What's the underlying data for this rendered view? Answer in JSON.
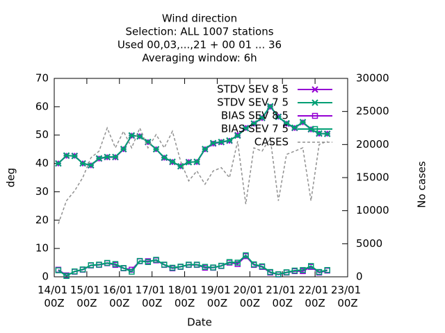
{
  "chart_data": {
    "type": "line",
    "title": [
      "Wind direction",
      "Selection: ALL    1007 stations",
      "Used  00,03,...,21  + 00 01 ... 36",
      "Averaging window:  6h"
    ],
    "xlabel": "Date",
    "ylabel": "deg",
    "y2label": "No cases",
    "xlim": [
      0,
      216
    ],
    "xticks": [
      {
        "value": 0,
        "label": "14/01 00Z"
      },
      {
        "value": 24,
        "label": "15/01 00Z"
      },
      {
        "value": 48,
        "label": "16/01 00Z"
      },
      {
        "value": 72,
        "label": "17/01 00Z"
      },
      {
        "value": 96,
        "label": "18/01 00Z"
      },
      {
        "value": 120,
        "label": "19/01 00Z"
      },
      {
        "value": 144,
        "label": "20/01 00Z"
      },
      {
        "value": 168,
        "label": "21/01 00Z"
      },
      {
        "value": 192,
        "label": "22/01 00Z"
      },
      {
        "value": 216,
        "label": "23/01 00Z"
      }
    ],
    "ylim": [
      0,
      70
    ],
    "yticks": [
      0,
      10,
      20,
      30,
      40,
      50,
      60,
      70
    ],
    "y2lim": [
      0,
      30000
    ],
    "y2ticks": [
      0,
      5000,
      10000,
      15000,
      20000,
      25000,
      30000
    ],
    "legend": "top-right",
    "x": [
      3,
      9,
      15,
      21,
      27,
      33,
      39,
      45,
      51,
      57,
      63,
      69,
      75,
      81,
      87,
      93,
      99,
      105,
      111,
      117,
      123,
      129,
      135,
      141,
      147,
      153,
      159,
      165,
      171,
      177,
      183,
      189,
      195,
      201
    ],
    "series": [
      {
        "name": "STDV SEV 8 5",
        "color": "#9400d3",
        "marker": "star",
        "values": [
          40,
          42.7,
          42.7,
          40,
          39.3,
          41.7,
          42.2,
          42.2,
          45,
          49.8,
          49.6,
          47.5,
          45,
          42,
          40.5,
          39,
          40.5,
          40.5,
          45,
          47,
          47.5,
          48,
          50,
          52.5,
          54,
          56,
          60,
          56.5,
          54,
          52.5,
          54.5,
          52,
          50.5,
          50.5
        ]
      },
      {
        "name": "STDV SEV 7 5",
        "color": "#009e73",
        "marker": "x",
        "values": [
          40,
          42.8,
          42.6,
          40,
          39.4,
          41.8,
          42.3,
          42.3,
          45.1,
          49.9,
          49.5,
          47.6,
          45,
          42.1,
          40.6,
          39,
          40.4,
          40.6,
          45.1,
          47.2,
          47.6,
          48.1,
          49.8,
          52.4,
          54.1,
          56.1,
          60.2,
          56.4,
          54.2,
          52.6,
          54.6,
          52.1,
          50.6,
          50.4
        ]
      },
      {
        "name": "BIAS SEV 8 5",
        "color": "#9400d3",
        "marker": "square",
        "values": [
          2.5,
          0.5,
          1.8,
          2.5,
          4,
          4.2,
          4.8,
          4.2,
          3,
          2.5,
          5.5,
          5.5,
          5.8,
          4.2,
          3,
          3.5,
          4.2,
          4.2,
          3.2,
          3.2,
          3.8,
          5,
          4.5,
          7.3,
          4.2,
          3.5,
          1.5,
          0.8,
          1.5,
          2,
          2,
          3.5,
          1.5,
          2.2
        ]
      },
      {
        "name": "BIAS SEV 7 5",
        "color": "#009e73",
        "marker": "square",
        "values": [
          2.3,
          0.3,
          1.9,
          2.6,
          4.1,
          4.3,
          4.9,
          4.5,
          3.1,
          1.8,
          5.6,
          5.2,
          6,
          4.3,
          3.2,
          3.6,
          4.3,
          4.3,
          3.5,
          3.3,
          3.9,
          5.2,
          5,
          7.6,
          4.4,
          3.7,
          1.7,
          0.9,
          1.6,
          2.2,
          2.4,
          3.8,
          1.7,
          2.4
        ]
      },
      {
        "name": "CASES",
        "color": "#909090",
        "marker": "none",
        "dash": true,
        "axis": "y2",
        "values": [
          8000,
          11500,
          13000,
          15000,
          18000,
          19000,
          22500,
          19500,
          22000,
          19500,
          22500,
          19500,
          21500,
          19500,
          22000,
          17500,
          14500,
          16000,
          14000,
          16000,
          16500,
          15000,
          20500,
          11000,
          19500,
          19000,
          21000,
          11500,
          18500,
          19000,
          19500,
          11500,
          20000,
          20500
        ]
      }
    ]
  }
}
